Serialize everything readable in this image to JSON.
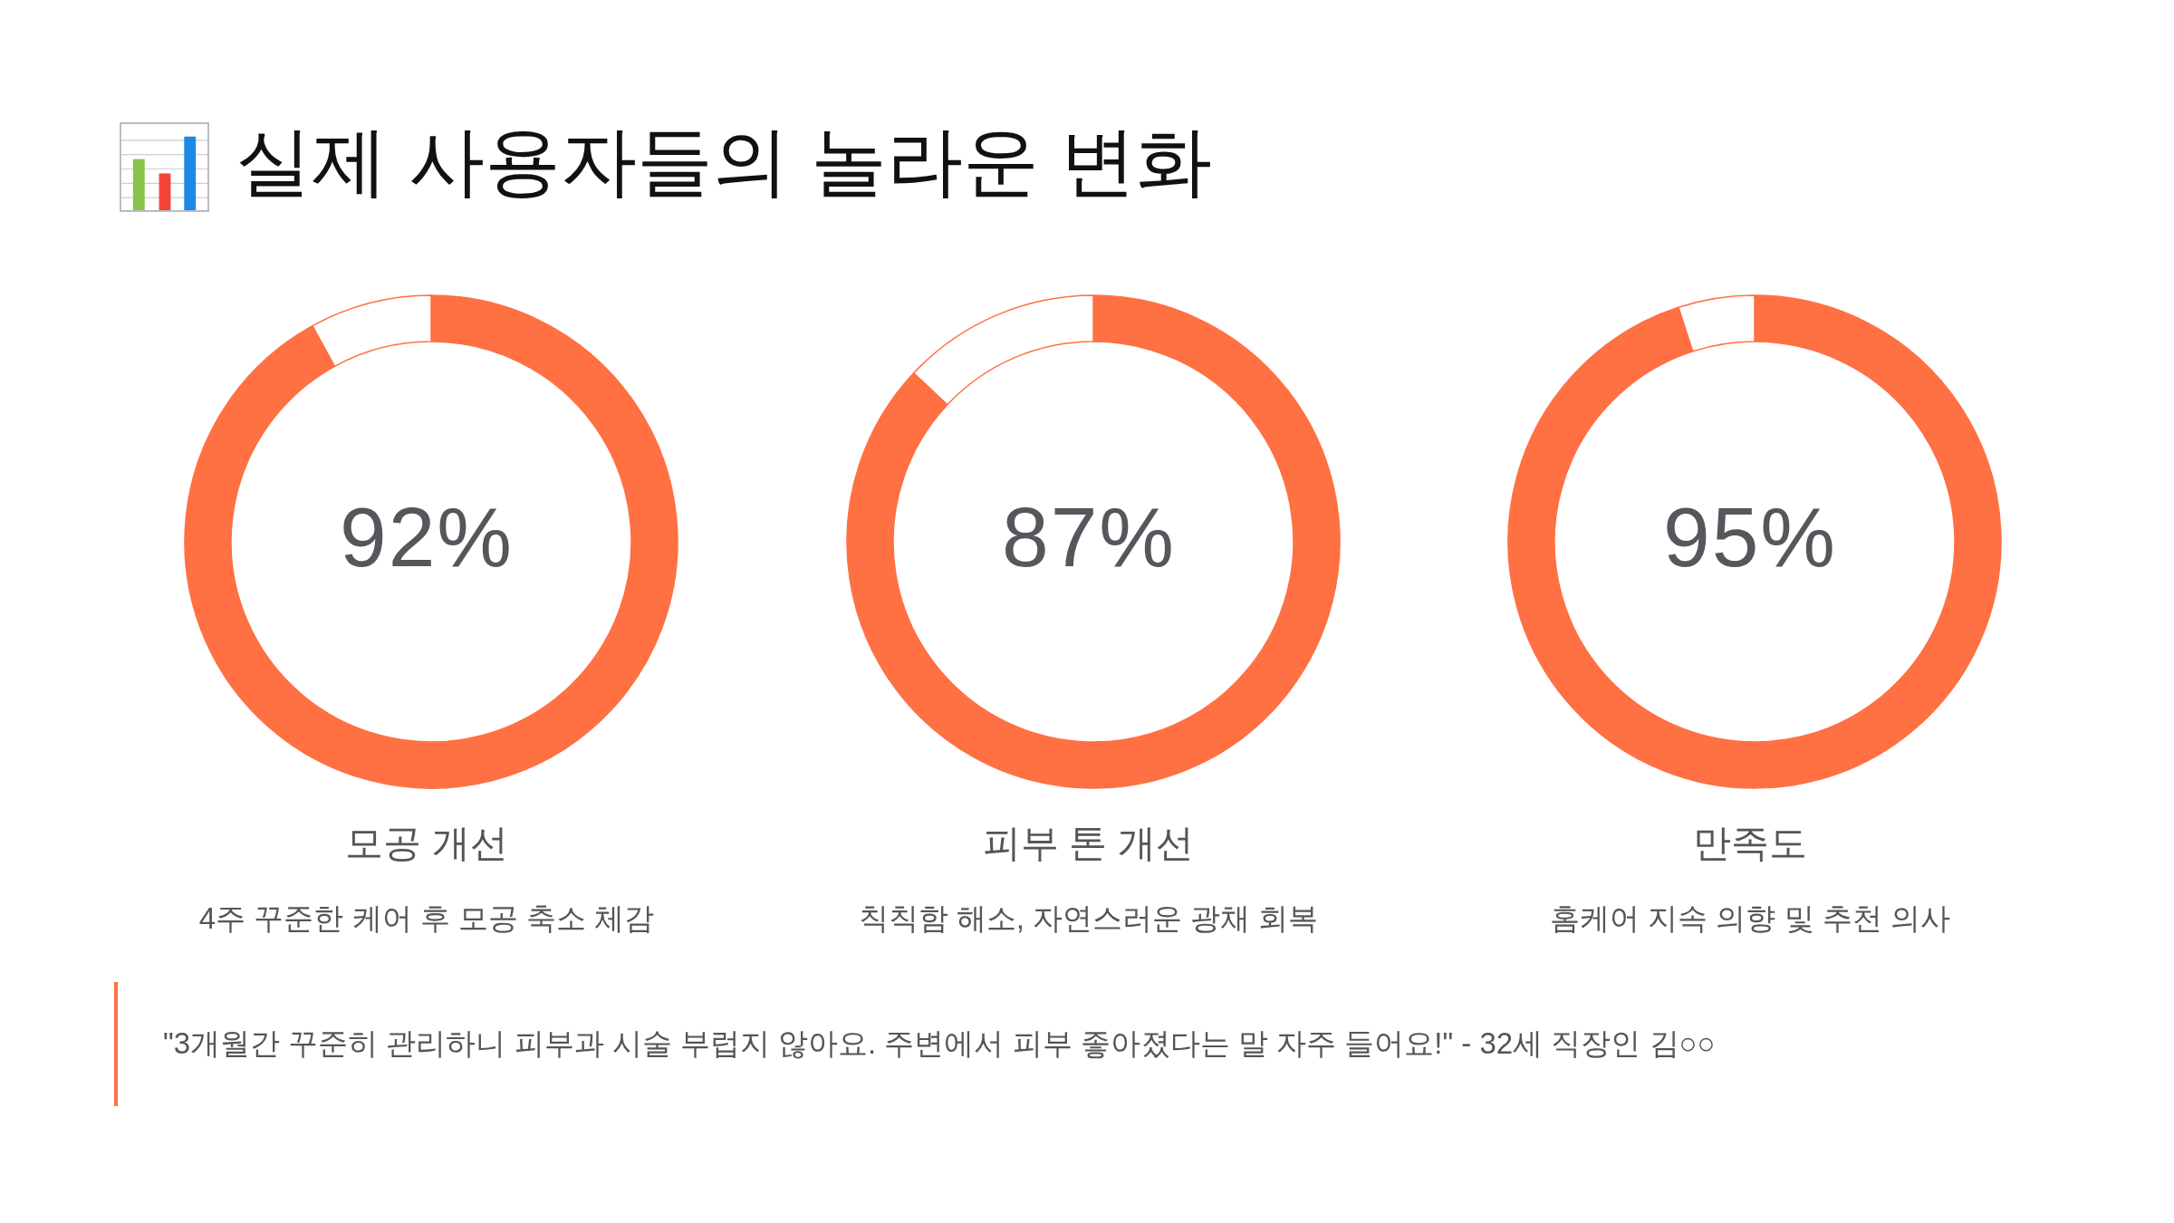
{
  "chart_data": [
    {
      "type": "other",
      "title": "실제 사용자들의 놀라운 변화"
    },
    {
      "type": "donut",
      "title": "모공 개선",
      "subtitle": "4주 꾸준한 케어 후 모공 축소 체감",
      "categories": [
        null,
        null
      ],
      "values": [
        92,
        8
      ],
      "colors": [
        "#ff7043",
        "#ffffff"
      ],
      "value_labels": [
        "92%",
        null
      ]
    },
    {
      "type": "donut",
      "title": "피부 톤 개선",
      "subtitle": "칙칙함 해소, 자연스러운 광채 회복",
      "categories": [
        null,
        null
      ],
      "values": [
        87,
        13
      ],
      "colors": [
        "#ff7043",
        "#ffffff"
      ],
      "value_labels": [
        "87%",
        null
      ]
    },
    {
      "type": "donut",
      "title": "만족도",
      "subtitle": "홈케어 지속 의향 및 추천 의사",
      "categories": [
        null,
        null
      ],
      "values": [
        95,
        5
      ],
      "colors": [
        "#ff7043",
        "#ffffff"
      ],
      "value_labels": [
        "95%",
        null
      ]
    },
    {
      "type": "other",
      "annotations": [
        "\"3개월간 꾸준히 관리하니 피부과 시술 부럽지 않아요. 주변에서 피부 좋아졌다는 말 자주 들어요!\" - 32세 직장인 김○○"
      ]
    }
  ]
}
